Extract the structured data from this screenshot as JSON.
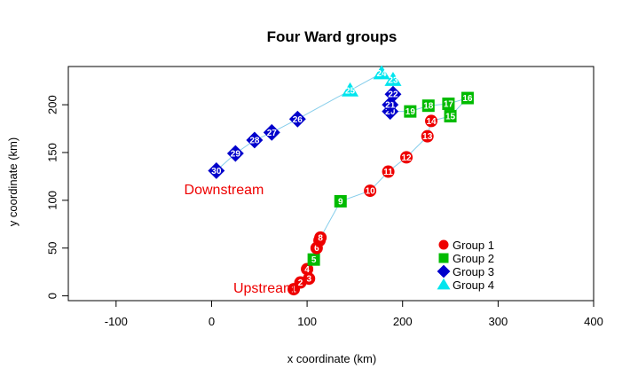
{
  "chart_data": {
    "type": "scatter",
    "title": "Four Ward groups",
    "xlabel": "x coordinate (km)",
    "ylabel": "y coordinate (km)",
    "xlim": [
      -150,
      400
    ],
    "ylim": [
      -5,
      240
    ],
    "xticks": [
      -100,
      0,
      100,
      200,
      300,
      400
    ],
    "yticks": [
      0,
      50,
      100,
      150,
      200
    ],
    "grid": false,
    "legend_position": "bottom-right",
    "connect_order": true,
    "path_color": "#87ceeb",
    "series": [
      {
        "name": "Group 1",
        "color": "#ee0000",
        "marker": "circle"
      },
      {
        "name": "Group 2",
        "color": "#00bb00",
        "marker": "square"
      },
      {
        "name": "Group 3",
        "color": "#0000cc",
        "marker": "diamond"
      },
      {
        "name": "Group 4",
        "color": "#00e5ee",
        "marker": "triangle"
      }
    ],
    "points": [
      {
        "id": "1",
        "x": 86,
        "y": 7,
        "group": 0
      },
      {
        "id": "2",
        "x": 93,
        "y": 14,
        "group": 0
      },
      {
        "id": "3",
        "x": 102,
        "y": 18,
        "group": 0
      },
      {
        "id": "4",
        "x": 100,
        "y": 28,
        "group": 0
      },
      {
        "id": "5",
        "x": 107,
        "y": 38,
        "group": 1
      },
      {
        "id": "6",
        "x": 110,
        "y": 50,
        "group": 0
      },
      {
        "id": "7",
        "x": 113,
        "y": 58,
        "group": 0
      },
      {
        "id": "8",
        "x": 114,
        "y": 61,
        "group": 0
      },
      {
        "id": "9",
        "x": 135,
        "y": 99,
        "group": 1
      },
      {
        "id": "10",
        "x": 166,
        "y": 110,
        "group": 0
      },
      {
        "id": "11",
        "x": 185,
        "y": 130,
        "group": 0
      },
      {
        "id": "12",
        "x": 204,
        "y": 145,
        "group": 0
      },
      {
        "id": "13",
        "x": 226,
        "y": 167,
        "group": 0
      },
      {
        "id": "14",
        "x": 230,
        "y": 183,
        "group": 0
      },
      {
        "id": "15",
        "x": 250,
        "y": 188,
        "group": 1
      },
      {
        "id": "16",
        "x": 268,
        "y": 207,
        "group": 1
      },
      {
        "id": "17",
        "x": 248,
        "y": 201,
        "group": 1
      },
      {
        "id": "18",
        "x": 227,
        "y": 199,
        "group": 1
      },
      {
        "id": "19",
        "x": 208,
        "y": 193,
        "group": 1
      },
      {
        "id": "20",
        "x": 187,
        "y": 193,
        "group": 2
      },
      {
        "id": "21",
        "x": 187,
        "y": 200,
        "group": 2
      },
      {
        "id": "22",
        "x": 190,
        "y": 211,
        "group": 2
      },
      {
        "id": "23",
        "x": 190,
        "y": 226,
        "group": 3
      },
      {
        "id": "24",
        "x": 178,
        "y": 233,
        "group": 3
      },
      {
        "id": "25",
        "x": 145,
        "y": 215,
        "group": 3
      },
      {
        "id": "26",
        "x": 90,
        "y": 185,
        "group": 2
      },
      {
        "id": "27",
        "x": 63,
        "y": 171,
        "group": 2
      },
      {
        "id": "28",
        "x": 45,
        "y": 163,
        "group": 2
      },
      {
        "id": "29",
        "x": 25,
        "y": 149,
        "group": 2
      },
      {
        "id": "30",
        "x": 5,
        "y": 131,
        "group": 2
      }
    ],
    "annotations": [
      {
        "text": "Downstream",
        "x": 13,
        "y": 112,
        "color": "#ee0000"
      },
      {
        "text": "Upstream",
        "x": 55,
        "y": 9,
        "color": "#ee0000"
      }
    ]
  }
}
